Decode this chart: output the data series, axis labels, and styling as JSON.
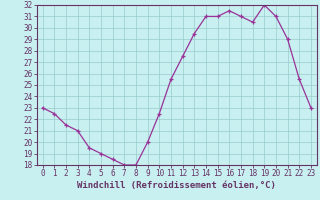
{
  "x": [
    0,
    1,
    2,
    3,
    4,
    5,
    6,
    7,
    8,
    9,
    10,
    11,
    12,
    13,
    14,
    15,
    16,
    17,
    18,
    19,
    20,
    21,
    22,
    23
  ],
  "y": [
    23.0,
    22.5,
    21.5,
    21.0,
    19.5,
    19.0,
    18.5,
    18.0,
    18.0,
    20.0,
    22.5,
    25.5,
    27.5,
    29.5,
    31.0,
    31.0,
    31.5,
    31.0,
    30.5,
    32.0,
    31.0,
    29.0,
    25.5,
    23.0
  ],
  "title": "",
  "xlabel": "Windchill (Refroidissement éolien,°C)",
  "ylabel": "",
  "ylim": [
    18,
    32
  ],
  "xlim": [
    -0.5,
    23.5
  ],
  "yticks": [
    18,
    19,
    20,
    21,
    22,
    23,
    24,
    25,
    26,
    27,
    28,
    29,
    30,
    31,
    32
  ],
  "xticks": [
    0,
    1,
    2,
    3,
    4,
    5,
    6,
    7,
    8,
    9,
    10,
    11,
    12,
    13,
    14,
    15,
    16,
    17,
    18,
    19,
    20,
    21,
    22,
    23
  ],
  "line_color": "#993399",
  "marker": "+",
  "bg_color": "#c8f0f0",
  "grid_color": "#99cccc",
  "axis_color": "#663366",
  "label_color": "#663366",
  "tick_label_fontsize": 5.5,
  "xlabel_fontsize": 6.5,
  "marker_size": 3.5
}
